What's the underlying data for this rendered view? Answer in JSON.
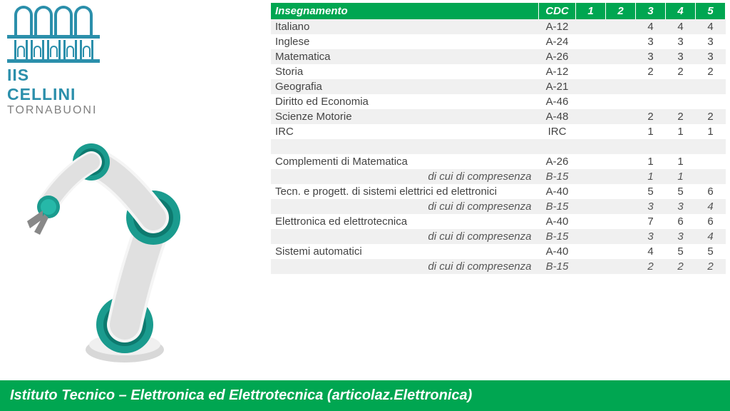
{
  "logo": {
    "line1": "IIS CELLINI",
    "line2": "TORNABUONI"
  },
  "table": {
    "headers": [
      "Insegnamento",
      "CDC",
      "1",
      "2",
      "3",
      "4",
      "5"
    ],
    "header_bg": "#00a651",
    "header_fg": "#ffffff",
    "alt_bg": "#f0f0f0",
    "rows": [
      {
        "name": "Italiano",
        "cdc": "A-12",
        "v": [
          "",
          "",
          "4",
          "4",
          "4"
        ],
        "alt": true
      },
      {
        "name": "Inglese",
        "cdc": "A-24",
        "v": [
          "",
          "",
          "3",
          "3",
          "3"
        ],
        "alt": false
      },
      {
        "name": "Matematica",
        "cdc": "A-26",
        "v": [
          "",
          "",
          "3",
          "3",
          "3"
        ],
        "alt": true
      },
      {
        "name": "Storia",
        "cdc": "A-12",
        "v": [
          "",
          "",
          "2",
          "2",
          "2"
        ],
        "alt": false
      },
      {
        "name": "Geografia",
        "cdc": "A-21",
        "v": [
          "",
          "",
          "",
          "",
          ""
        ],
        "alt": true
      },
      {
        "name": "Diritto ed Economia",
        "cdc": "A-46",
        "v": [
          "",
          "",
          "",
          "",
          ""
        ],
        "alt": false
      },
      {
        "name": "Scienze Motorie",
        "cdc": "A-48",
        "v": [
          "",
          "",
          "2",
          "2",
          "2"
        ],
        "alt": true
      },
      {
        "name": "IRC",
        "cdc": "IRC",
        "v": [
          "",
          "",
          "1",
          "1",
          "1"
        ],
        "alt": false
      },
      {
        "name": "",
        "cdc": "",
        "v": [
          "",
          "",
          "",
          "",
          ""
        ],
        "alt": true
      },
      {
        "name": "Complementi di Matematica",
        "cdc": "A-26",
        "v": [
          "",
          "",
          "1",
          "1",
          ""
        ],
        "alt": false
      },
      {
        "name": "di cui di compresenza",
        "cdc": "B-15",
        "v": [
          "",
          "",
          "1",
          "1",
          ""
        ],
        "alt": true,
        "sub": true
      },
      {
        "name": "Tecn. e progett. di sistemi elettrici ed elettronici",
        "cdc": "A-40",
        "v": [
          "",
          "",
          "5",
          "5",
          "6"
        ],
        "alt": false
      },
      {
        "name": "di cui di compresenza",
        "cdc": "B-15",
        "v": [
          "",
          "",
          "3",
          "3",
          "4"
        ],
        "alt": true,
        "sub": true
      },
      {
        "name": "Elettronica ed elettrotecnica",
        "cdc": "A-40",
        "v": [
          "",
          "",
          "7",
          "6",
          "6"
        ],
        "alt": false
      },
      {
        "name": "di cui di compresenza",
        "cdc": "B-15",
        "v": [
          "",
          "",
          "3",
          "3",
          "4"
        ],
        "alt": true,
        "sub": true
      },
      {
        "name": "Sistemi automatici",
        "cdc": "A-40",
        "v": [
          "",
          "",
          "4",
          "5",
          "5"
        ],
        "alt": false
      },
      {
        "name": "di cui di compresenza",
        "cdc": "B-15",
        "v": [
          "",
          "",
          "2",
          "2",
          "2"
        ],
        "alt": true,
        "sub": true
      }
    ]
  },
  "footer": "Istituto Tecnico – Elettronica ed Elettrotecnica (articolaz.Elettronica)",
  "colors": {
    "brand_green": "#00a651",
    "logo_blue": "#2b8fab",
    "logo_gray": "#808080",
    "robot_teal": "#1a9b8e",
    "robot_white": "#f5f5f5"
  }
}
